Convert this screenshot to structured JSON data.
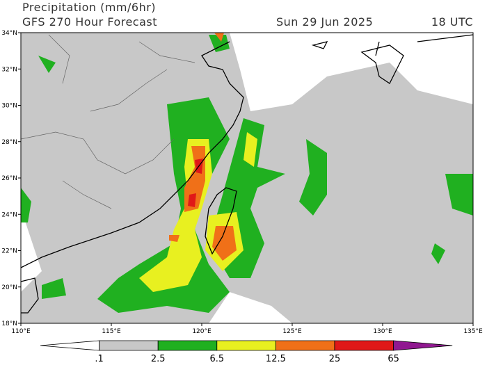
{
  "header": {
    "title": "Precipitation (mm/6hr)",
    "subtitle": "GFS 270 Hour Forecast",
    "date": "Sun 29 Jun 2025",
    "time": "18 UTC"
  },
  "map": {
    "lat_labels": [
      "34°N",
      "32°N",
      "30°N",
      "28°N",
      "26°N",
      "24°N",
      "22°N",
      "20°N",
      "18°N"
    ],
    "lon_labels": [
      "110°E",
      "115°E",
      "120°E",
      "125°E",
      "130°E",
      "135°E"
    ]
  },
  "colorbar": {
    "labels": [
      ".1",
      "2.5",
      "6.5",
      "12.5",
      "25",
      "65"
    ],
    "colors": [
      "#ffffff",
      "#c8c8c8",
      "#20b020",
      "#e8f020",
      "#f07018",
      "#e01818",
      "#901890"
    ]
  }
}
